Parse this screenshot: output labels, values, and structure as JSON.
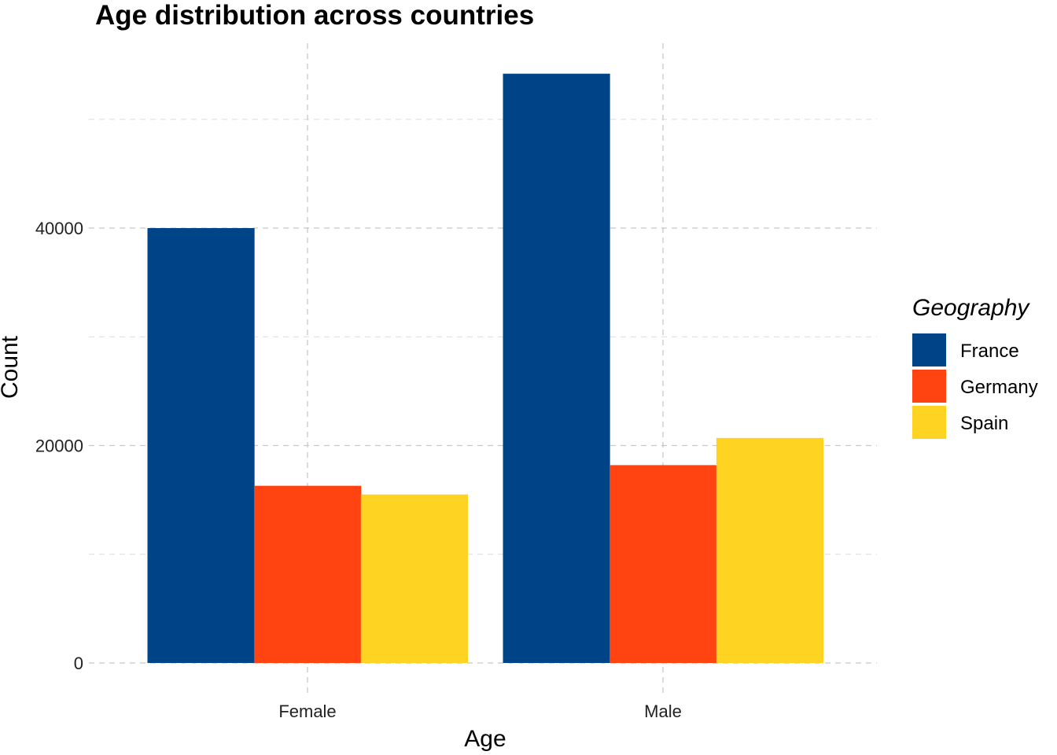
{
  "chart_data": {
    "type": "bar",
    "title": "Age distribution across countries",
    "xlabel": "Age",
    "ylabel": "Count",
    "categories": [
      "Female",
      "Male"
    ],
    "series": [
      {
        "name": "France",
        "color": "#004488",
        "values": [
          40000,
          54200
        ]
      },
      {
        "name": "Germany",
        "color": "#FF4411",
        "values": [
          16300,
          18200
        ]
      },
      {
        "name": "Spain",
        "color": "#FFD322",
        "values": [
          15500,
          20700
        ]
      }
    ],
    "ylim": [
      0,
      57000
    ],
    "yticks": [
      0,
      20000,
      40000
    ],
    "ytick_labels": [
      "0",
      "20000",
      "40000"
    ],
    "minor_yticks": [
      10000,
      30000,
      50000
    ],
    "legend_title": "Geography",
    "legend_position": "right",
    "grid": true
  }
}
